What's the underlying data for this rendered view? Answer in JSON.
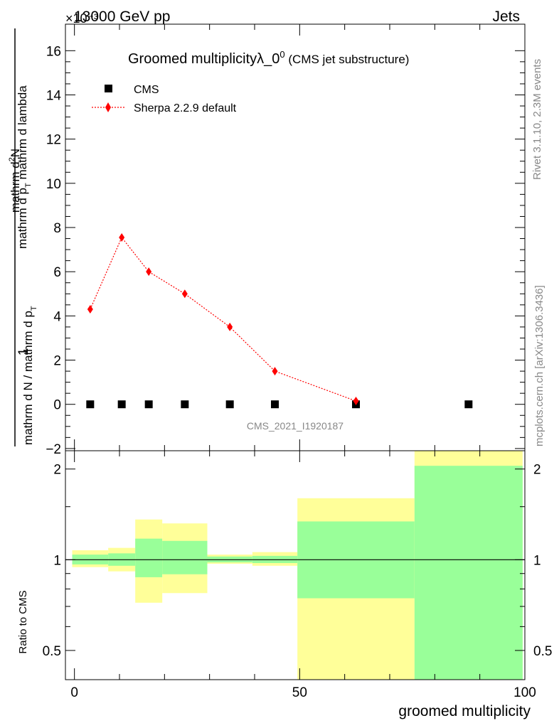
{
  "header": {
    "left": "13000 GeV pp",
    "right": "Jets",
    "exponent": "×10⁻³"
  },
  "side_labels": {
    "rivet": "Rivet 3.1.10,  2.3M events",
    "mcplots": "mcplots.cern.ch [arXiv:1306.3436]"
  },
  "watermark": "CMS_2021_I1920187",
  "chart_data": [
    {
      "type": "scatter",
      "panel": "main",
      "title": "Groomed multiplicityλ_0",
      "title_superscript": "0",
      "subtitle": "(CMS jet substructure)",
      "ylabel": "1 / (mathrm d N / mathrm d p_T mathrm d p_T mathrm d lambda) · mathrm dN",
      "ylabel_parts": {
        "numerator_top": "mathrm d",
        "numerator_top_sup": "2",
        "numerator_bottom": "N",
        "fraction_one": "1",
        "den_line1": "mathrm d N / mathrm d p",
        "den_line1_sub": "T",
        "den_line2": "mathrm d p",
        "den_line2_sub": "T",
        "den_line3": "mathrm d lambda"
      },
      "xlim": [
        -2,
        100
      ],
      "ylim": [
        -2.1,
        17.2
      ],
      "yticks": [
        -2,
        0,
        2,
        4,
        6,
        8,
        10,
        12,
        14,
        16
      ],
      "ytick_labels": [
        "−2",
        "0",
        "2",
        "4",
        "6",
        "8",
        "10",
        "12",
        "14",
        "16"
      ],
      "y_scale_factor": "1e-3",
      "series": [
        {
          "name": "CMS",
          "marker": "square",
          "color": "#000000",
          "x": [
            3.5,
            10.5,
            16.5,
            24.5,
            34.5,
            44.5,
            62.5,
            87.5
          ],
          "y": [
            0,
            0,
            0,
            0,
            0,
            0,
            0,
            0
          ]
        },
        {
          "name": "Sherpa 2.2.9 default",
          "marker": "diamond",
          "line": "dotted",
          "color": "#ff0000",
          "x": [
            3.5,
            10.5,
            16.5,
            24.5,
            34.5,
            44.5,
            62.5
          ],
          "y": [
            4.3,
            7.55,
            6.0,
            5.0,
            3.5,
            1.5,
            0.15
          ]
        }
      ],
      "legend_position": "top-left"
    },
    {
      "type": "area",
      "panel": "ratio",
      "ylabel": "Ratio to CMS",
      "xlabel": "groomed multiplicity",
      "scale": "log",
      "ylim": [
        0.4,
        2.3
      ],
      "yticks": [
        0.5,
        1,
        2
      ],
      "ytick_labels": [
        "0.5",
        "1",
        "2"
      ],
      "xticks": [
        0,
        50,
        100
      ],
      "xtick_labels": [
        "0",
        "50",
        "100"
      ],
      "reference_line": 1,
      "bins": [
        {
          "lo": -0.5,
          "hi": 7.5,
          "inner": [
            0.965,
            1.04
          ],
          "outer": [
            0.945,
            1.075
          ]
        },
        {
          "lo": 7.5,
          "hi": 13.5,
          "inner": [
            0.955,
            1.05
          ],
          "outer": [
            0.915,
            1.095
          ]
        },
        {
          "lo": 13.5,
          "hi": 19.5,
          "inner": [
            0.875,
            1.175
          ],
          "outer": [
            0.72,
            1.36
          ]
        },
        {
          "lo": 19.5,
          "hi": 29.5,
          "inner": [
            0.895,
            1.155
          ],
          "outer": [
            0.775,
            1.32
          ]
        },
        {
          "lo": 29.5,
          "hi": 39.5,
          "inner": [
            0.98,
            1.025
          ],
          "outer": [
            0.97,
            1.04
          ]
        },
        {
          "lo": 39.5,
          "hi": 49.5,
          "inner": [
            0.975,
            1.03
          ],
          "outer": [
            0.955,
            1.06
          ]
        },
        {
          "lo": 49.5,
          "hi": 75.5,
          "inner": [
            0.745,
            1.34
          ],
          "outer": [
            0.4,
            1.6
          ]
        },
        {
          "lo": 75.5,
          "hi": 99.5,
          "inner": [
            0.4,
            2.05
          ],
          "outer": [
            0.4,
            2.3
          ]
        }
      ],
      "colors": {
        "inner": "#99ff99",
        "outer": "#ffff99"
      }
    }
  ]
}
